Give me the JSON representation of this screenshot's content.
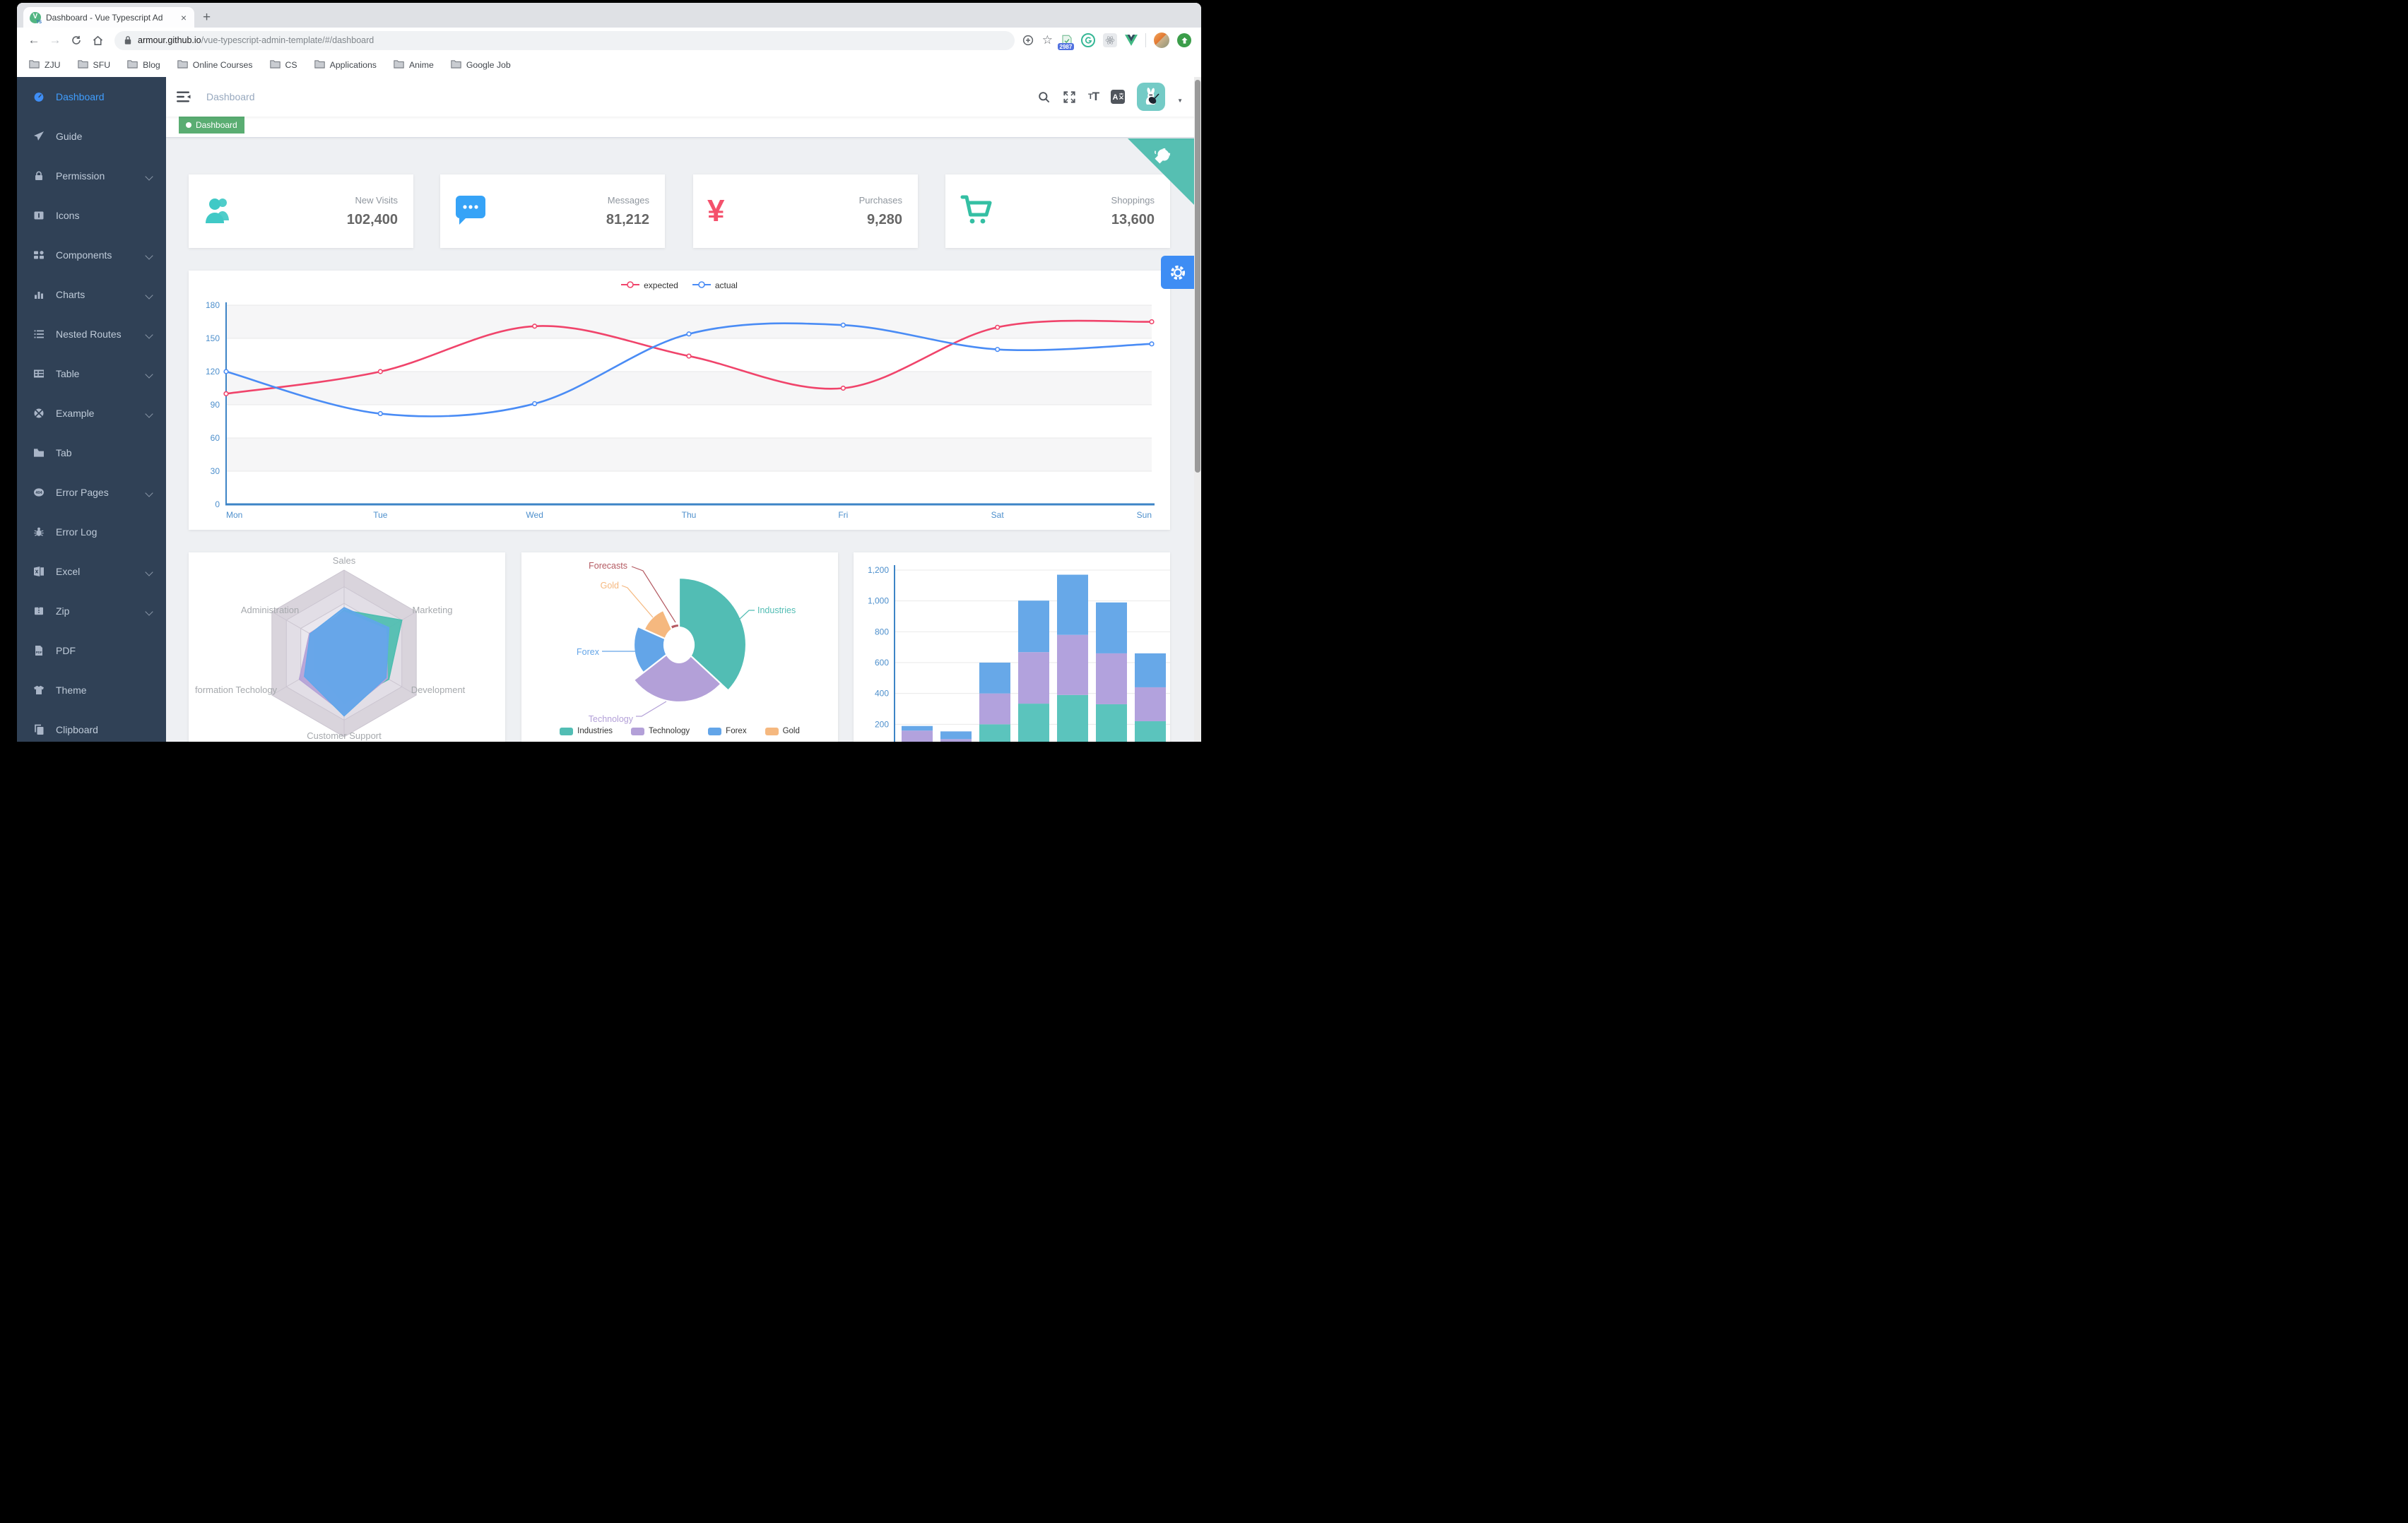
{
  "browser": {
    "tab_title": "Dashboard - Vue Typescript Ad",
    "close_tab_label": "×",
    "new_tab_label": "+",
    "url": {
      "host": "armour.github.io",
      "path": "/vue-typescript-admin-template/#/dashboard"
    },
    "extension_badge": "2987",
    "bookmarks": [
      "ZJU",
      "SFU",
      "Blog",
      "Online Courses",
      "CS",
      "Applications",
      "Anime",
      "Google Job"
    ]
  },
  "sidebar": {
    "items": [
      {
        "label": "Dashboard",
        "icon": "dashboard",
        "active": true,
        "expandable": false
      },
      {
        "label": "Guide",
        "icon": "guide",
        "expandable": false
      },
      {
        "label": "Permission",
        "icon": "lock",
        "expandable": true
      },
      {
        "label": "Icons",
        "icon": "icons",
        "expandable": false
      },
      {
        "label": "Components",
        "icon": "components",
        "expandable": true
      },
      {
        "label": "Charts",
        "icon": "charts",
        "expandable": true
      },
      {
        "label": "Nested Routes",
        "icon": "nested",
        "expandable": true
      },
      {
        "label": "Table",
        "icon": "table",
        "expandable": true
      },
      {
        "label": "Example",
        "icon": "example",
        "expandable": true
      },
      {
        "label": "Tab",
        "icon": "tab",
        "expandable": false
      },
      {
        "label": "Error Pages",
        "icon": "error-pages",
        "expandable": true
      },
      {
        "label": "Error Log",
        "icon": "bug",
        "expandable": false
      },
      {
        "label": "Excel",
        "icon": "excel",
        "expandable": true
      },
      {
        "label": "Zip",
        "icon": "zip",
        "expandable": true
      },
      {
        "label": "PDF",
        "icon": "pdf",
        "expandable": false
      },
      {
        "label": "Theme",
        "icon": "theme",
        "expandable": false
      },
      {
        "label": "Clipboard",
        "icon": "clipboard",
        "expandable": false
      }
    ]
  },
  "appbar": {
    "breadcrumb": "Dashboard"
  },
  "tags": [
    {
      "label": "Dashboard",
      "active": true,
      "color": "#5aad72"
    }
  ],
  "stats": [
    {
      "label": "New Visits",
      "value": "102,400",
      "icon": "people",
      "color": "#40c9c6"
    },
    {
      "label": "Messages",
      "value": "81,212",
      "icon": "message",
      "color": "#36a3f7"
    },
    {
      "label": "Purchases",
      "value": "9,280",
      "icon": "money",
      "color": "#f4516c"
    },
    {
      "label": "Shoppings",
      "value": "13,600",
      "icon": "cart",
      "color": "#34bfa3"
    }
  ],
  "chart_data": [
    {
      "type": "line",
      "categories": [
        "Mon",
        "Tue",
        "Wed",
        "Thu",
        "Fri",
        "Sat",
        "Sun"
      ],
      "series": [
        {
          "name": "expected",
          "color": "#f0446b",
          "values": [
            100,
            120,
            161,
            134,
            105,
            160,
            165
          ]
        },
        {
          "name": "actual",
          "color": "#4a8cf5",
          "values": [
            120,
            82,
            91,
            154,
            162,
            140,
            145
          ]
        }
      ],
      "ylim": [
        0,
        180
      ],
      "yticks": [
        0,
        30,
        60,
        90,
        120,
        150,
        180
      ],
      "legend_position": "top",
      "grid": "striped"
    },
    {
      "type": "radar",
      "indicators": [
        "Sales",
        "Marketing",
        "Development",
        "Customer Support",
        "formation Techology",
        "Administration"
      ],
      "series": [
        {
          "name": "teal-series",
          "color": "#4dbdb0",
          "values_norm": [
            0.52,
            0.8,
            0.62,
            0.6,
            0.4,
            0.42
          ]
        },
        {
          "name": "purple-series",
          "color": "#b5a2d6",
          "values_norm": [
            0.5,
            0.58,
            0.6,
            0.72,
            0.62,
            0.48
          ]
        },
        {
          "name": "blue-series",
          "color": "#61a6ea",
          "values_norm": [
            0.55,
            0.62,
            0.58,
            0.75,
            0.55,
            0.47
          ]
        }
      ]
    },
    {
      "type": "pie",
      "rose": true,
      "slices": [
        {
          "name": "Industries",
          "share": 0.369,
          "color": "#52bdb4"
        },
        {
          "name": "Technology",
          "share": 0.276,
          "color": "#b3a0d8"
        },
        {
          "name": "Forex",
          "share": 0.172,
          "color": "#63a5e8"
        },
        {
          "name": "Gold",
          "share": 0.115,
          "color": "#f5b87f"
        },
        {
          "name": "Forecasts",
          "share": 0.068,
          "color": "#b45a62"
        }
      ],
      "legend": [
        "Industries",
        "Technology",
        "Forex",
        "Gold"
      ]
    },
    {
      "type": "bar",
      "stacked": true,
      "series": [
        {
          "name": "bottom-stack",
          "color": "#5bc4bd",
          "values": [
            79,
            52,
            200,
            334,
            390,
            330,
            220
          ]
        },
        {
          "name": "middle-stack",
          "color": "#b2a2dd",
          "values": [
            80,
            52,
            200,
            334,
            390,
            330,
            220
          ]
        },
        {
          "name": "top-stack",
          "color": "#67a8e8",
          "values": [
            30,
            50,
            200,
            334,
            390,
            330,
            220
          ]
        }
      ],
      "yticks": [
        200,
        400,
        600,
        800,
        1000,
        1200
      ],
      "ytick_labels": [
        "200",
        "400",
        "600",
        "800",
        "1,000",
        "1,200"
      ],
      "axis_color": "#4d8fcc"
    }
  ]
}
